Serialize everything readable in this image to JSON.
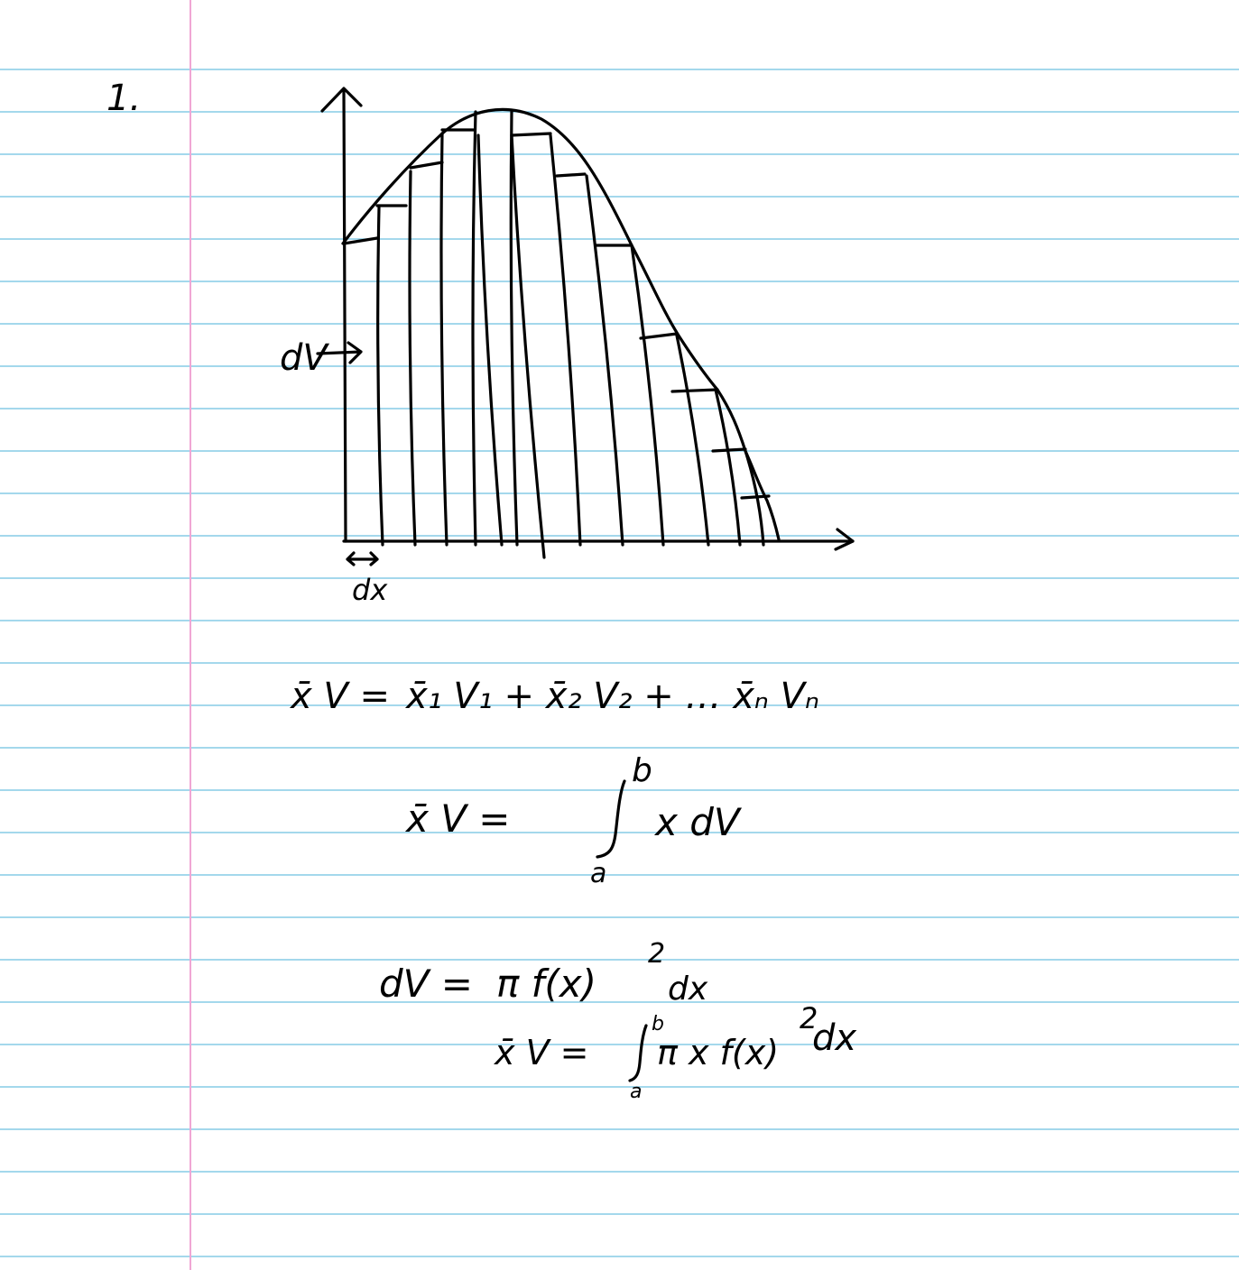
{
  "notebook": {
    "rule_color": "#85cbe6",
    "margin_color": "#f0a6d4",
    "ink_color": "#000000"
  },
  "problem_number": "1.",
  "diagram": {
    "slice_label": "dV",
    "width_label": "dx"
  },
  "equations": {
    "sum_lhs": "x̄ V =",
    "sum_rhs": "x̄₁ V₁ + x̄₂ V₂ + … x̄ₙ Vₙ",
    "integral_lhs": "x̄ V =",
    "integral_upper": "b",
    "integral_lower": "a",
    "integrand": "x dV",
    "dv_lhs": "dV =",
    "dv_rhs": "π f(x)",
    "dv_exp": "2",
    "dv_tail": "dx",
    "final_lhs": "x̄ V =",
    "final_upper": "b",
    "final_lower": "a",
    "final_integrand": "π x f(x)",
    "final_exp": "2",
    "final_tail": "dx"
  }
}
